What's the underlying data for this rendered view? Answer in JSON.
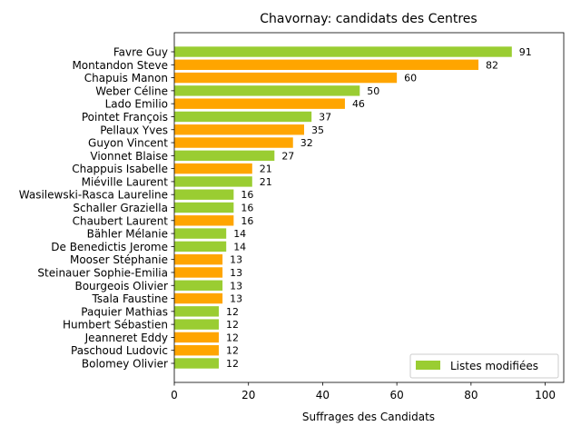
{
  "chart_data": {
    "type": "bar",
    "orientation": "horizontal",
    "title": "Chavornay: candidats des Centres",
    "xlabel": "Suffrages des Candidats",
    "ylabel": "",
    "xlim": [
      0,
      105
    ],
    "xticks": [
      0,
      20,
      40,
      60,
      80,
      100
    ],
    "grid": false,
    "legend": {
      "placement": "lower-right",
      "entries": [
        {
          "label": "Listes modifiées",
          "color": "#9ACD32"
        }
      ]
    },
    "colors": {
      "green": "#9ACD32",
      "orange": "#FFA500",
      "axis": "#000000"
    },
    "categories": [
      "Favre Guy",
      "Montandon Steve",
      "Chapuis Manon",
      "Weber Céline",
      "Lado Emilio",
      "Pointet François",
      "Pellaux Yves",
      "Guyon Vincent",
      "Vionnet Blaise",
      "Chappuis Isabelle",
      "Miéville Laurent",
      "Wasilewski-Rasca Laureline",
      "Schaller Graziella",
      "Chaubert Laurent",
      "Bähler Mélanie",
      "De Benedictis Jerome",
      "Mooser Stéphanie",
      "Steinauer Sophie-Emilia",
      "Bourgeois Olivier",
      "Tsala Faustine",
      "Paquier Mathias",
      "Humbert Sébastien",
      "Jeanneret Eddy",
      "Paschoud Ludovic",
      "Bolomey Olivier"
    ],
    "values": [
      91,
      82,
      60,
      50,
      46,
      37,
      35,
      32,
      27,
      21,
      21,
      16,
      16,
      16,
      14,
      14,
      13,
      13,
      13,
      13,
      12,
      12,
      12,
      12,
      12
    ],
    "bar_colors": [
      "green",
      "orange",
      "orange",
      "green",
      "orange",
      "green",
      "orange",
      "orange",
      "green",
      "orange",
      "green",
      "green",
      "green",
      "orange",
      "green",
      "green",
      "orange",
      "orange",
      "green",
      "orange",
      "green",
      "green",
      "orange",
      "orange",
      "green"
    ]
  }
}
